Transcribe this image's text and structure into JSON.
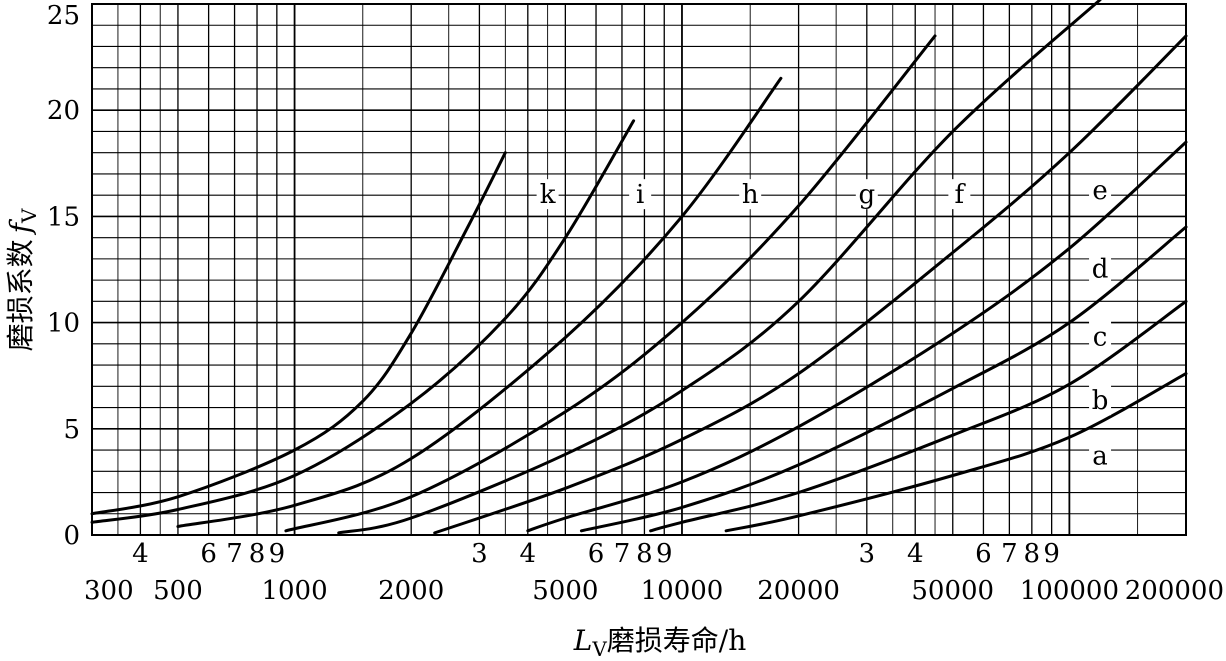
{
  "chart_data": {
    "type": "line",
    "title": "",
    "xscale": "log",
    "xlim": [
      300,
      200000
    ],
    "ylim": [
      0,
      25
    ],
    "grid": true,
    "ylabel": {
      "main": "磨损系数",
      "symbol": "f",
      "sub": "V"
    },
    "xlabel": {
      "symbol": "L",
      "sub": "V",
      "main": "磨损寿命/h"
    },
    "yticks": [
      {
        "value": 0,
        "label": "0"
      },
      {
        "value": 5,
        "label": "5"
      },
      {
        "value": 10,
        "label": "10"
      },
      {
        "value": 15,
        "label": "15"
      },
      {
        "value": 20,
        "label": "20"
      },
      {
        "value": 25,
        "label": "25"
      }
    ],
    "xticks_major": [
      {
        "value": 300,
        "label": "300"
      },
      {
        "value": 500,
        "label": "500"
      },
      {
        "value": 1000,
        "label": "1000"
      },
      {
        "value": 2000,
        "label": "2000"
      },
      {
        "value": 5000,
        "label": "5000"
      },
      {
        "value": 10000,
        "label": "10000"
      },
      {
        "value": 20000,
        "label": "20000"
      },
      {
        "value": 50000,
        "label": "50000"
      },
      {
        "value": 100000,
        "label": "100000"
      },
      {
        "value": 200000,
        "label": "200000"
      }
    ],
    "xticks_minor": [
      {
        "value": 400,
        "label": "4"
      },
      {
        "value": 600,
        "label": "6"
      },
      {
        "value": 700,
        "label": "7"
      },
      {
        "value": 800,
        "label": "8"
      },
      {
        "value": 900,
        "label": "9"
      },
      {
        "value": 3000,
        "label": "3"
      },
      {
        "value": 4000,
        "label": "4"
      },
      {
        "value": 6000,
        "label": "6"
      },
      {
        "value": 7000,
        "label": "7"
      },
      {
        "value": 8000,
        "label": "8"
      },
      {
        "value": 9000,
        "label": "9"
      },
      {
        "value": 30000,
        "label": "3"
      },
      {
        "value": 40000,
        "label": "4"
      },
      {
        "value": 60000,
        "label": "6"
      },
      {
        "value": 70000,
        "label": "7"
      },
      {
        "value": 80000,
        "label": "8"
      },
      {
        "value": 90000,
        "label": "9"
      }
    ],
    "series": [
      {
        "name": "k",
        "label_at": [
          4500,
          16
        ],
        "points": [
          [
            300,
            1.0
          ],
          [
            500,
            1.8
          ],
          [
            1000,
            4.0
          ],
          [
            1500,
            6.3
          ],
          [
            2000,
            9.5
          ],
          [
            2800,
            14.5
          ],
          [
            3500,
            18.0
          ]
        ]
      },
      {
        "name": "i",
        "label_at": [
          7800,
          16
        ],
        "points": [
          [
            300,
            0.6
          ],
          [
            500,
            1.2
          ],
          [
            1000,
            2.8
          ],
          [
            2000,
            6.2
          ],
          [
            3500,
            10.2
          ],
          [
            5000,
            14.0
          ],
          [
            7500,
            19.5
          ]
        ]
      },
      {
        "name": "h",
        "label_at": [
          15000,
          16
        ],
        "points": [
          [
            500,
            0.4
          ],
          [
            1000,
            1.4
          ],
          [
            2000,
            3.6
          ],
          [
            5000,
            9.3
          ],
          [
            10000,
            15.0
          ],
          [
            18000,
            21.5
          ]
        ]
      },
      {
        "name": "g",
        "label_at": [
          30000,
          16
        ],
        "points": [
          [
            950,
            0.2
          ],
          [
            2000,
            1.8
          ],
          [
            5000,
            5.8
          ],
          [
            10000,
            10.0
          ],
          [
            20000,
            15.5
          ],
          [
            45000,
            23.5
          ]
        ]
      },
      {
        "name": "f",
        "label_at": [
          52000,
          16
        ],
        "points": [
          [
            1300,
            0.1
          ],
          [
            2000,
            0.8
          ],
          [
            5000,
            3.8
          ],
          [
            10000,
            6.8
          ],
          [
            20000,
            11.0
          ],
          [
            50000,
            19.0
          ],
          [
            120000,
            25.2
          ]
        ]
      },
      {
        "name": "e",
        "label_at": [
          120000,
          16.2
        ],
        "points": [
          [
            2300,
            0.1
          ],
          [
            5000,
            2.2
          ],
          [
            10000,
            4.5
          ],
          [
            20000,
            7.6
          ],
          [
            50000,
            13.3
          ],
          [
            100000,
            18.0
          ],
          [
            200000,
            23.5
          ]
        ]
      },
      {
        "name": "d",
        "label_at": [
          120000,
          12.5
        ],
        "points": [
          [
            4000,
            0.2
          ],
          [
            5000,
            0.8
          ],
          [
            10000,
            2.5
          ],
          [
            20000,
            5.1
          ],
          [
            50000,
            9.5
          ],
          [
            100000,
            13.5
          ],
          [
            200000,
            18.5
          ]
        ]
      },
      {
        "name": "c",
        "label_at": [
          120000,
          9.3
        ],
        "points": [
          [
            5500,
            0.2
          ],
          [
            10000,
            1.3
          ],
          [
            20000,
            3.3
          ],
          [
            50000,
            6.9
          ],
          [
            100000,
            10.0
          ],
          [
            200000,
            14.5
          ]
        ]
      },
      {
        "name": "b",
        "label_at": [
          120000,
          6.3
        ],
        "points": [
          [
            8300,
            0.2
          ],
          [
            10000,
            0.6
          ],
          [
            20000,
            2.0
          ],
          [
            50000,
            4.7
          ],
          [
            100000,
            7.1
          ],
          [
            200000,
            11.0
          ]
        ]
      },
      {
        "name": "a",
        "label_at": [
          120000,
          3.7
        ],
        "points": [
          [
            13000,
            0.2
          ],
          [
            20000,
            0.9
          ],
          [
            50000,
            2.8
          ],
          [
            100000,
            4.6
          ],
          [
            200000,
            7.6
          ]
        ]
      }
    ]
  }
}
